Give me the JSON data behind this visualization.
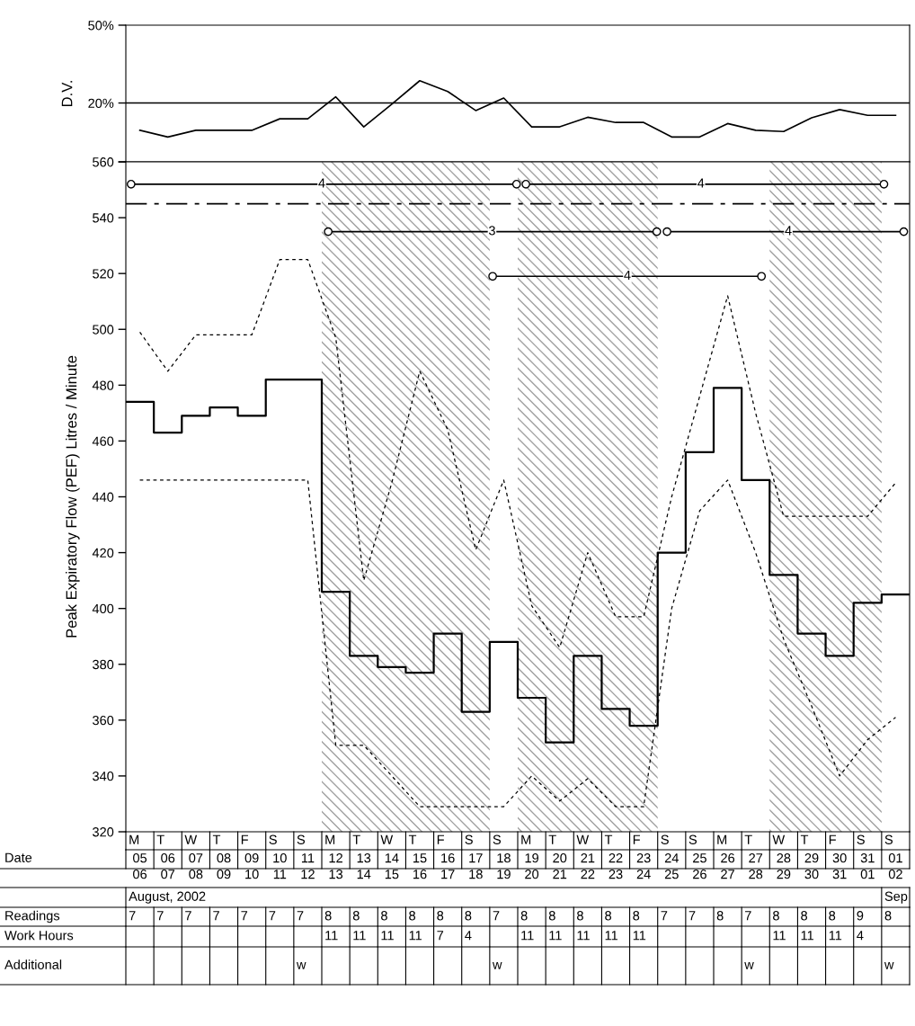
{
  "chart_data": [
    {
      "type": "line",
      "ylabel": "D.V.",
      "log": "y",
      "xlim": [
        "2002-08-05",
        "2002-09-02"
      ],
      "ylim": [
        10,
        50
      ],
      "yticks": [
        {
          "value": 50,
          "label": "50%"
        },
        {
          "value": 20,
          "label": "20%"
        },
        {
          "value": 10,
          "label": null
        }
      ],
      "tick_labels": "y",
      "ref_lines": [
        {
          "axis": "y",
          "value": 20,
          "color": "#000000",
          "line_style": "solid"
        }
      ],
      "series": [
        {
          "type": "line",
          "color": "#000000",
          "line_style": "solid",
          "x": [
            "2002-08-05T12:00",
            "2002-08-06T12:00",
            "2002-08-07T12:00",
            "2002-08-08T12:00",
            "2002-08-09T12:00",
            "2002-08-10T12:00",
            "2002-08-11T12:00",
            "2002-08-12T12:00",
            "2002-08-13T12:00",
            "2002-08-14T12:00",
            "2002-08-15T12:00",
            "2002-08-16T12:00",
            "2002-08-17T12:00",
            "2002-08-18T12:00",
            "2002-08-19T12:00",
            "2002-08-20T12:00",
            "2002-08-21T12:00",
            "2002-08-22T12:00",
            "2002-08-23T12:00",
            "2002-08-24T12:00",
            "2002-08-25T12:00",
            "2002-08-26T12:00",
            "2002-08-27T12:00",
            "2002-08-28T12:00",
            "2002-08-29T12:00",
            "2002-08-30T12:00",
            "2002-08-31T12:00",
            "2002-09-01T12:00"
          ],
          "values": [
            14.5,
            13.4,
            14.5,
            14.5,
            14.5,
            16.6,
            16.6,
            21.5,
            15.1,
            19.7,
            26.0,
            22.9,
            18.3,
            21.2,
            15.1,
            15.1,
            16.9,
            15.9,
            15.9,
            13.4,
            13.4,
            15.7,
            14.5,
            14.3,
            16.8,
            18.5,
            17.3,
            17.3
          ]
        }
      ]
    },
    {
      "type": "line",
      "ylabel": "Peak Expiratory Flow (PEF) Litres / Minute",
      "xlim": [
        "2002-08-05",
        "2002-09-02"
      ],
      "ylim": [
        320,
        560
      ],
      "yticks": [
        320,
        340,
        360,
        380,
        400,
        420,
        440,
        460,
        480,
        500,
        520,
        540,
        560
      ],
      "xlabel": "Date",
      "xticks": [
        {
          "value": "2002-08-05T12:00",
          "label": "05\n06"
        },
        {
          "value": "2002-08-06T12:00",
          "label": "06\n07"
        },
        {
          "value": "2002-08-07T12:00",
          "label": "07\n08"
        },
        {
          "value": "2002-08-08T12:00",
          "label": "08\n09"
        },
        {
          "value": "2002-08-09T12:00",
          "label": "09\n10"
        },
        {
          "value": "2002-08-10T12:00",
          "label": "10\n11"
        },
        {
          "value": "2002-08-11T12:00",
          "label": "11\n12"
        },
        {
          "value": "2002-08-12T12:00",
          "label": "12\n13"
        },
        {
          "value": "2002-08-13T12:00",
          "label": "13\n14"
        },
        {
          "value": "2002-08-14T12:00",
          "label": "14\n15"
        },
        {
          "value": "2002-08-15T12:00",
          "label": "15\n16"
        },
        {
          "value": "2002-08-16T12:00",
          "label": "16\n17"
        },
        {
          "value": "2002-08-17T12:00",
          "label": "17\n18"
        },
        {
          "value": "2002-08-18T12:00",
          "label": "18\n19"
        },
        {
          "value": "2002-08-19T12:00",
          "label": "19\n20"
        },
        {
          "value": "2002-08-20T12:00",
          "label": "20\n21"
        },
        {
          "value": "2002-08-21T12:00",
          "label": "21\n22"
        },
        {
          "value": "2002-08-22T12:00",
          "label": "22\n23"
        },
        {
          "value": "2002-08-23T12:00",
          "label": "23\n24"
        },
        {
          "value": "2002-08-24T12:00",
          "label": "24\n25"
        },
        {
          "value": "2002-08-25T12:00",
          "label": "25\n26"
        },
        {
          "value": "2002-08-26T12:00",
          "label": "26\n27"
        },
        {
          "value": "2002-08-27T12:00",
          "label": "27\n28"
        },
        {
          "value": "2002-08-28T12:00",
          "label": "28\n29"
        },
        {
          "value": "2002-08-29T12:00",
          "label": "29\n30"
        },
        {
          "value": "2002-08-30T12:00",
          "label": "30\n31"
        },
        {
          "value": "2002-08-31T12:00",
          "label": "31\n01"
        },
        {
          "value": "2002-09-01T12:00",
          "label": "01\n02"
        }
      ],
      "ref_lines": [
        {
          "axis": "y",
          "value": 545,
          "color": "#000000",
          "line_style": "dashdot"
        }
      ],
      "bands": [
        {
          "axis": "x",
          "from": "2002-08-12",
          "to": "2002-08-18",
          "color": "#a0a0a0"
        },
        {
          "axis": "x",
          "from": "2002-08-19",
          "to": "2002-08-24",
          "color": "#a0a0a0"
        },
        {
          "axis": "x",
          "from": "2002-08-28",
          "to": "2002-09-01",
          "color": "#a0a0a0"
        }
      ],
      "series": [
        {
          "type": "step",
          "color": "#000000",
          "line_style": "solid",
          "x": [
            "2002-08-05",
            "2002-08-06",
            "2002-08-07",
            "2002-08-08",
            "2002-08-09",
            "2002-08-10",
            "2002-08-11",
            "2002-08-12",
            "2002-08-13",
            "2002-08-14",
            "2002-08-15",
            "2002-08-16",
            "2002-08-17",
            "2002-08-18",
            "2002-08-19",
            "2002-08-20",
            "2002-08-21",
            "2002-08-22",
            "2002-08-23",
            "2002-08-24",
            "2002-08-25",
            "2002-08-26",
            "2002-08-27",
            "2002-08-28",
            "2002-08-29",
            "2002-08-30",
            "2002-08-31",
            "2002-09-01",
            "2002-09-02"
          ],
          "values": [
            474,
            463,
            469,
            472,
            469,
            482,
            482,
            406,
            383,
            379,
            377,
            391,
            363,
            388,
            368,
            352,
            383,
            364,
            358,
            420,
            456,
            479,
            446,
            412,
            391,
            383,
            402,
            405,
            405
          ]
        },
        {
          "type": "line",
          "color": "#000000",
          "line_style": "dashed",
          "x": [
            "2002-08-05T12:00",
            "2002-08-06T12:00",
            "2002-08-07T12:00",
            "2002-08-08T12:00",
            "2002-08-09T12:00",
            "2002-08-10T12:00",
            "2002-08-11T12:00",
            "2002-08-12T12:00",
            "2002-08-13T12:00",
            "2002-08-14T12:00",
            "2002-08-15T12:00",
            "2002-08-16T12:00",
            "2002-08-17T12:00",
            "2002-08-18T12:00",
            "2002-08-19T12:00",
            "2002-08-20T12:00",
            "2002-08-21T12:00",
            "2002-08-22T12:00",
            "2002-08-23T12:00",
            "2002-08-24T12:00",
            "2002-08-25T12:00",
            "2002-08-26T12:00",
            "2002-08-27T12:00",
            "2002-08-28T12:00",
            "2002-08-29T12:00",
            "2002-08-30T12:00",
            "2002-08-31T12:00",
            "2002-09-01T12:00"
          ],
          "values": [
            499,
            485,
            498,
            498,
            498,
            525,
            525,
            497,
            410,
            445,
            485,
            464,
            421,
            446,
            401,
            386,
            420,
            397,
            397,
            440,
            476,
            512,
            470,
            433,
            433,
            433,
            433,
            445
          ]
        },
        {
          "type": "line",
          "color": "#000000",
          "line_style": "dashed",
          "x": [
            "2002-08-05T12:00",
            "2002-08-06T12:00",
            "2002-08-07T12:00",
            "2002-08-08T12:00",
            "2002-08-09T12:00",
            "2002-08-10T12:00",
            "2002-08-11T12:00",
            "2002-08-12T12:00",
            "2002-08-13T12:00",
            "2002-08-14T12:00",
            "2002-08-15T12:00",
            "2002-08-16T12:00",
            "2002-08-17T12:00",
            "2002-08-18T12:00",
            "2002-08-19T12:00",
            "2002-08-20T12:00",
            "2002-08-21T12:00",
            "2002-08-22T12:00",
            "2002-08-23T12:00",
            "2002-08-24T12:00",
            "2002-08-25T12:00",
            "2002-08-26T12:00",
            "2002-08-27T12:00",
            "2002-08-28T12:00",
            "2002-08-29T12:00",
            "2002-08-30T12:00",
            "2002-08-31T12:00",
            "2002-09-01T12:00"
          ],
          "values": [
            446,
            446,
            446,
            446,
            446,
            446,
            446,
            351,
            351,
            340,
            329,
            329,
            329,
            329,
            340,
            331,
            339,
            329,
            329,
            400,
            435,
            446,
            420,
            389,
            365,
            340,
            353,
            361
          ]
        },
        {
          "type": "line",
          "color": "#000000",
          "line_style": "solid",
          "marker": "circle",
          "x": [
            "2002-08-05T04:30",
            "2002-08-18T23:00"
          ],
          "values": [
            552,
            552
          ]
        },
        {
          "type": "line",
          "color": "#000000",
          "line_style": "solid",
          "marker": "circle",
          "x": [
            "2002-08-19T07:00",
            "2002-09-01T02:00"
          ],
          "values": [
            552,
            552
          ]
        },
        {
          "type": "line",
          "color": "#000000",
          "line_style": "solid",
          "marker": "circle",
          "x": [
            "2002-08-12T05:30",
            "2002-08-23T23:15"
          ],
          "values": [
            535,
            535
          ]
        },
        {
          "type": "line",
          "color": "#000000",
          "line_style": "solid",
          "marker": "circle",
          "x": [
            "2002-08-24T08:00",
            "2002-09-01T19:00"
          ],
          "values": [
            535,
            535
          ]
        },
        {
          "type": "line",
          "color": "#000000",
          "line_style": "solid",
          "marker": "circle",
          "x": [
            "2002-08-18T02:30",
            "2002-08-27T17:00"
          ],
          "values": [
            519,
            519
          ]
        }
      ],
      "annotations": [
        {
          "text": "4",
          "x": "2002-08-12",
          "y": 552
        },
        {
          "text": "4",
          "x": "2002-08-25T13:00",
          "y": 552
        },
        {
          "text": "3",
          "x": "2002-08-18T02:00",
          "y": 535
        },
        {
          "text": "4",
          "x": "2002-08-28T16:00",
          "y": 535
        },
        {
          "text": "4",
          "x": "2002-08-22T22:00",
          "y": 519
        }
      ]
    },
    {
      "type": "other",
      "categories": [
        "M",
        "T",
        "W",
        "T",
        "F",
        "S",
        "S",
        "M",
        "T",
        "W",
        "T",
        "F",
        "S",
        "S",
        "M",
        "T",
        "W",
        "T",
        "F",
        "S",
        "S",
        "M",
        "T",
        "W",
        "T",
        "F",
        "S",
        "S"
      ],
      "y_categories": [
        null,
        "Readings",
        "Work Hours",
        "Additional"
      ],
      "cell_labels": [
        [
          "August, 2002",
          null,
          null,
          null,
          null,
          null,
          null,
          null,
          null,
          null,
          null,
          null,
          null,
          null,
          null,
          null,
          null,
          null,
          null,
          null,
          null,
          null,
          null,
          null,
          null,
          null,
          null,
          "Sep"
        ],
        [
          "7",
          "7",
          "7",
          "7",
          "7",
          "7",
          "7",
          "8",
          "8",
          "8",
          "8",
          "8",
          "8",
          "7",
          "8",
          "8",
          "8",
          "8",
          "8",
          "7",
          "7",
          "8",
          "7",
          "8",
          "8",
          "8",
          "9",
          "8"
        ],
        [
          null,
          null,
          null,
          null,
          null,
          null,
          null,
          "11",
          "11",
          "11",
          "11",
          "7",
          "4",
          null,
          "11",
          "11",
          "11",
          "11",
          "11",
          null,
          null,
          null,
          null,
          "11",
          "11",
          "11",
          "4",
          null
        ],
        [
          null,
          null,
          null,
          null,
          null,
          null,
          "w",
          null,
          null,
          null,
          null,
          null,
          null,
          "w",
          null,
          null,
          null,
          null,
          null,
          null,
          null,
          null,
          "w",
          null,
          null,
          null,
          null,
          "w"
        ]
      ]
    }
  ]
}
